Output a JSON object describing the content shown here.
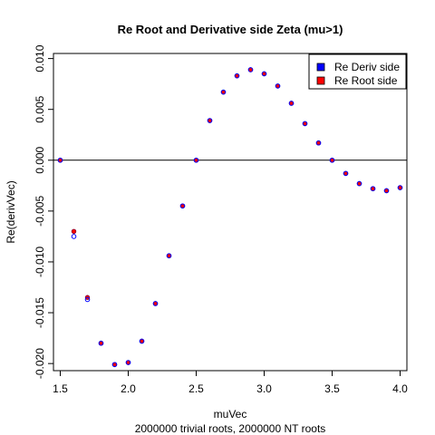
{
  "chart_data": {
    "type": "scatter",
    "title": "Re Root and Derivative side Zeta (mu>1)",
    "xlabel": "muVec",
    "ylabel": "Re(derivVec)",
    "subtitle": "2000000 trivial roots, 2000000 NT roots",
    "xlim": [
      1.45,
      4.05
    ],
    "ylim": [
      -0.0207,
      0.0105
    ],
    "x_ticks": [
      1.5,
      2.0,
      2.5,
      3.0,
      3.5,
      4.0
    ],
    "x_tick_labels": [
      "1.5",
      "2.0",
      "2.5",
      "3.0",
      "3.5",
      "4.0"
    ],
    "y_ticks": [
      -0.02,
      -0.015,
      -0.01,
      -0.005,
      0.0,
      0.005,
      0.01
    ],
    "y_tick_labels": [
      "-0.020",
      "-0.015",
      "-0.010",
      "-0.005",
      "0.000",
      "0.005",
      "0.010"
    ],
    "hline": 0,
    "grid": false,
    "legend_position": "top-right",
    "series": [
      {
        "name": "Re Deriv side",
        "color": "#0000ff",
        "marker": "open-circle",
        "x": [
          1.5,
          1.6,
          1.7,
          1.8,
          1.9,
          2.0,
          2.1,
          2.2,
          2.3,
          2.4,
          2.5,
          2.6,
          2.7,
          2.8,
          2.9,
          3.0,
          3.1,
          3.2,
          3.3,
          3.4,
          3.5,
          3.6,
          3.7,
          3.8,
          3.9,
          4.0
        ],
        "y": [
          0.0,
          -0.0075,
          -0.0137,
          -0.018,
          -0.0201,
          -0.0199,
          -0.0178,
          -0.0141,
          -0.0094,
          -0.0045,
          0.0,
          0.0039,
          0.0067,
          0.0083,
          0.0089,
          0.0085,
          0.0073,
          0.0056,
          0.0036,
          0.0017,
          0.0,
          -0.0013,
          -0.0023,
          -0.0028,
          -0.003,
          -0.0027
        ]
      },
      {
        "name": "Re Root side",
        "color": "#ff0000",
        "marker": "filled-circle",
        "x": [
          1.5,
          1.6,
          1.7,
          1.8,
          1.9,
          2.0,
          2.1,
          2.2,
          2.3,
          2.4,
          2.5,
          2.6,
          2.7,
          2.8,
          2.9,
          3.0,
          3.1,
          3.2,
          3.3,
          3.4,
          3.5,
          3.6,
          3.7,
          3.8,
          3.9,
          4.0
        ],
        "y": [
          0.0,
          -0.007,
          -0.0135,
          -0.018,
          -0.0201,
          -0.0199,
          -0.0178,
          -0.0141,
          -0.0094,
          -0.0045,
          0.0,
          0.0039,
          0.0067,
          0.0083,
          0.0089,
          0.0085,
          0.0073,
          0.0056,
          0.0036,
          0.0017,
          0.0,
          -0.0013,
          -0.0023,
          -0.0028,
          -0.003,
          -0.0027
        ]
      }
    ]
  }
}
